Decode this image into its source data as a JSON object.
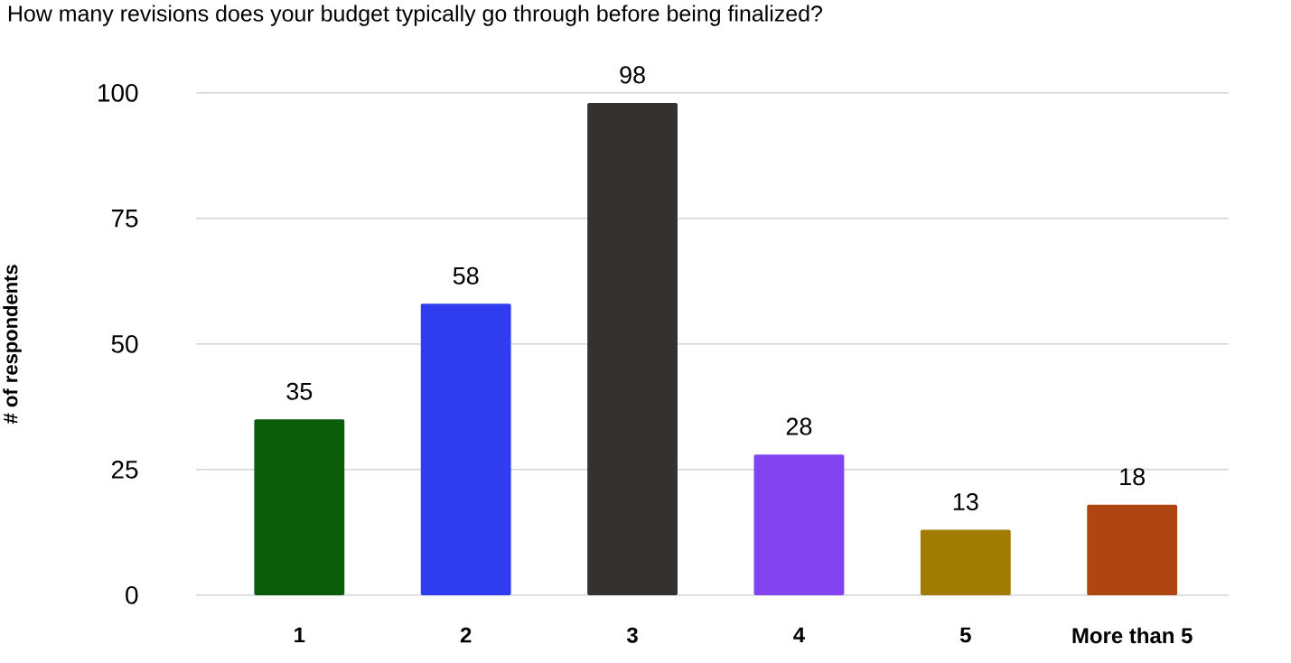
{
  "chart_data": {
    "type": "bar",
    "title": "How many revisions does your budget typically go through before being finalized?",
    "ylabel": "# of respondents",
    "categories": [
      "1",
      "2",
      "3",
      "4",
      "5",
      "More than 5"
    ],
    "values": [
      35,
      58,
      98,
      28,
      13,
      18
    ],
    "colors": [
      "#0a5c0a",
      "#2f3cf0",
      "#333230",
      "#8243f0",
      "#a07c00",
      "#ae4512"
    ],
    "ylim": [
      0,
      100
    ],
    "yticks": [
      0,
      25,
      50,
      75,
      100
    ],
    "grid": "y",
    "data_labels": true
  }
}
